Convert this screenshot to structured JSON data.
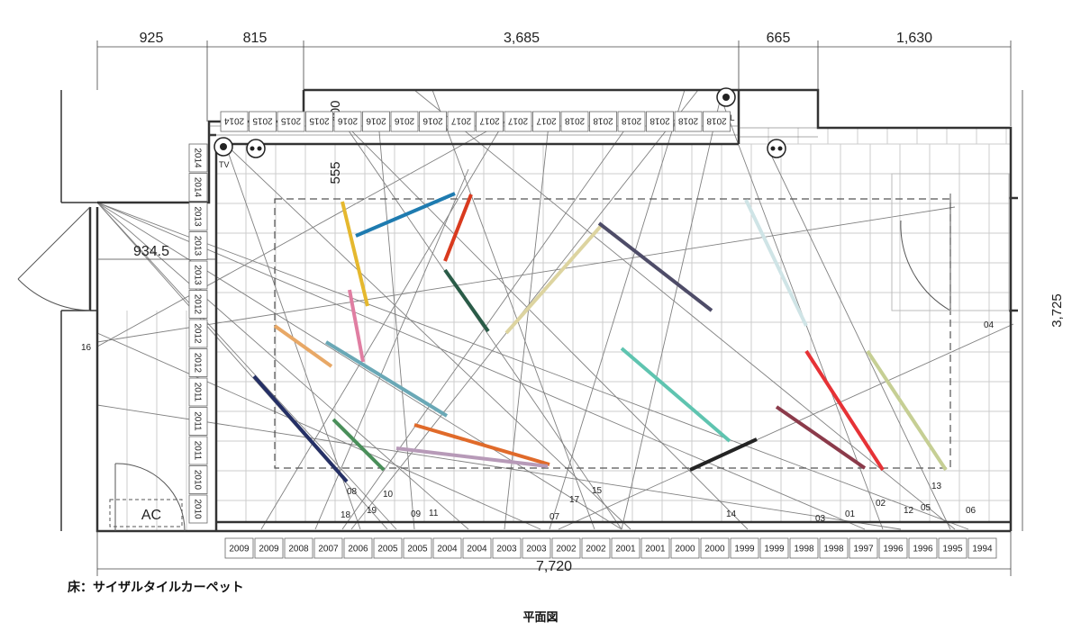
{
  "dimensions": {
    "top": [
      "925",
      "815",
      "3,685",
      "665",
      "1,630"
    ],
    "total_width": "7,720",
    "right_height": "3,725",
    "left_offset": "934.5",
    "inner_400": "400",
    "inner_555": "555"
  },
  "labels": {
    "ac": "AC",
    "tv": "TV",
    "tel": "TEL",
    "floor_note": "床：サイザルタイルカーペット",
    "plan_title": "平面図"
  },
  "years_bottom": [
    "2009",
    "2009",
    "2008",
    "2007",
    "2006",
    "2005",
    "2005",
    "2004",
    "2004",
    "2003",
    "2003",
    "2002",
    "2002",
    "2001",
    "2001",
    "2000",
    "2000",
    "1999",
    "1999",
    "1998",
    "1998",
    "1997",
    "1996",
    "1996",
    "1995",
    "1994"
  ],
  "years_top": [
    "2014",
    "2015",
    "2015",
    "2015",
    "2016",
    "2016",
    "2016",
    "2016",
    "2017",
    "2017",
    "2017",
    "2017",
    "2018",
    "2018",
    "2018",
    "2018",
    "2018",
    "2018"
  ],
  "years_left": [
    "2014",
    "2014",
    "2013",
    "2013",
    "2013",
    "2012",
    "2012",
    "2012",
    "2011",
    "2011",
    "2011",
    "2010",
    "2010"
  ],
  "line_numbers": [
    "01",
    "02",
    "03",
    "04",
    "05",
    "06",
    "07",
    "08",
    "09",
    "10",
    "11",
    "12",
    "13",
    "14",
    "15",
    "16",
    "17",
    "18",
    "19"
  ],
  "colors": {
    "wall": "#333333",
    "grid": "#cccccc",
    "sightline": "#777777",
    "bars": [
      "#e5b82e",
      "#1e7bb0",
      "#d93a1e",
      "#2a5c48",
      "#ddd4a0",
      "#4e4c68",
      "#cfe4e6",
      "#e63236",
      "#c6cf94",
      "#e8a866",
      "#e07ea2",
      "#6aa8b6",
      "#253066",
      "#4a8f5a",
      "#e06a2a",
      "#b79ab8",
      "#5fc4b0",
      "#232323",
      "#8b3a4a"
    ]
  }
}
